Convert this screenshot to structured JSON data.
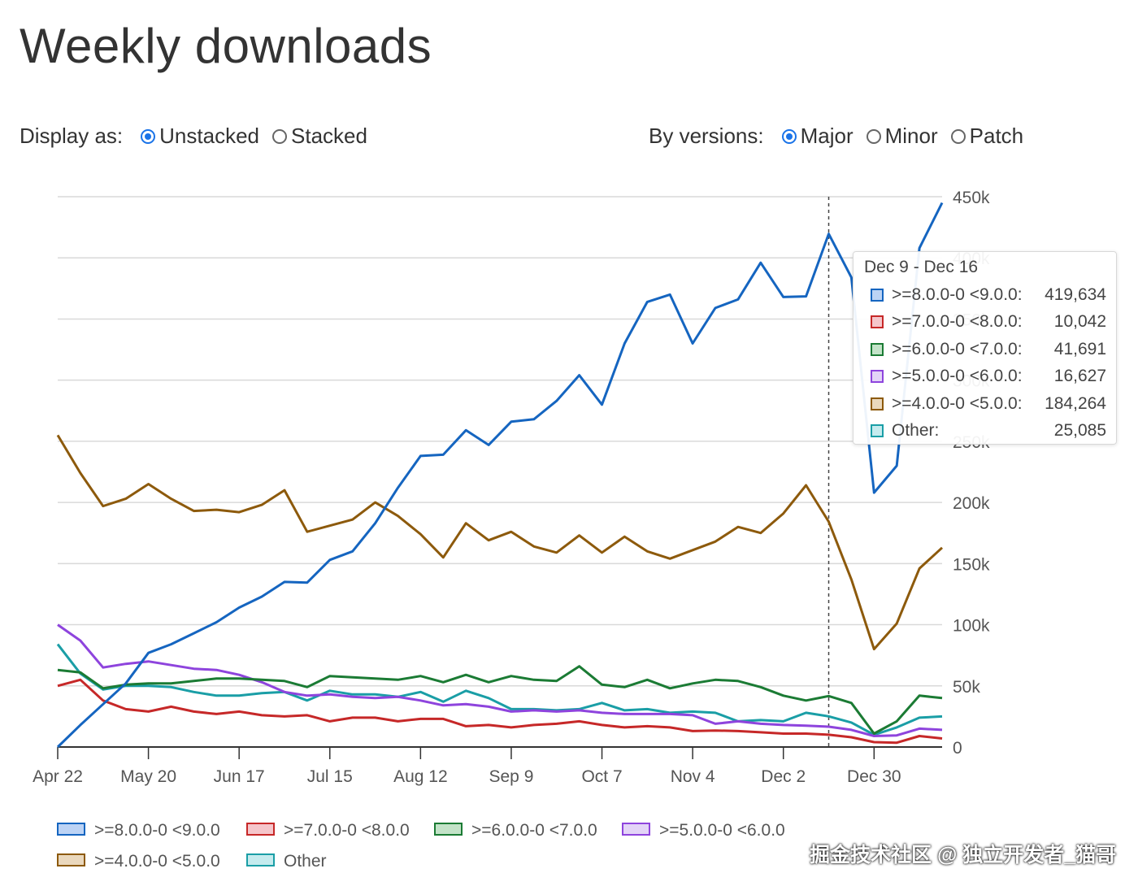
{
  "page": {
    "title": "Weekly downloads"
  },
  "controls": {
    "display_label": "Display as:",
    "display_options": [
      {
        "label": "Unstacked",
        "selected": true
      },
      {
        "label": "Stacked",
        "selected": false
      }
    ],
    "versions_label": "By versions:",
    "version_options": [
      {
        "label": "Major",
        "selected": true
      },
      {
        "label": "Minor",
        "selected": false
      },
      {
        "label": "Patch",
        "selected": false
      }
    ]
  },
  "tooltip": {
    "title": "Dec 9 - Dec 16",
    "rows": [
      {
        "label": ">=8.0.0-0 <9.0.0:",
        "value": "419,634",
        "color": "#1565c0",
        "fill": "#bcd3f5"
      },
      {
        "label": ">=7.0.0-0 <8.0.0:",
        "value": "10,042",
        "color": "#c62828",
        "fill": "#f5c6cb"
      },
      {
        "label": ">=6.0.0-0 <7.0.0:",
        "value": "41,691",
        "color": "#1b7b34",
        "fill": "#c3e3c8"
      },
      {
        "label": ">=5.0.0-0 <6.0.0:",
        "value": "16,627",
        "color": "#8e44dd",
        "fill": "#e3d4f7"
      },
      {
        "label": ">=4.0.0-0 <5.0.0:",
        "value": "184,264",
        "color": "#8d5a0c",
        "fill": "#ead8bd"
      },
      {
        "label": "Other:",
        "value": "25,085",
        "color": "#1a9ea6",
        "fill": "#c5ebee"
      }
    ]
  },
  "watermark": "掘金技术社区 @ 独立开发者_猫哥",
  "chart_data": {
    "type": "line",
    "x": [
      "Apr 22",
      "Apr 29",
      "May 6",
      "May 13",
      "May 20",
      "May 27",
      "Jun 3",
      "Jun 10",
      "Jun 17",
      "Jun 24",
      "Jul 1",
      "Jul 8",
      "Jul 15",
      "Jul 22",
      "Jul 29",
      "Aug 5",
      "Aug 12",
      "Aug 19",
      "Aug 26",
      "Sep 2",
      "Sep 9",
      "Sep 16",
      "Sep 23",
      "Sep 30",
      "Oct 7",
      "Oct 14",
      "Oct 21",
      "Oct 28",
      "Nov 4",
      "Nov 11",
      "Nov 18",
      "Nov 25",
      "Dec 2",
      "Dec 9",
      "Dec 16",
      "Dec 23",
      "Dec 30",
      "Jan 6",
      "Jan 13",
      "Jan 20"
    ],
    "x_ticks": [
      "Apr 22",
      "May 20",
      "Jun 17",
      "Jul 15",
      "Aug 12",
      "Sep 9",
      "Oct 7",
      "Nov 4",
      "Dec 2",
      "Dec 30"
    ],
    "y_ticks": [
      "0",
      "50k",
      "100k",
      "150k",
      "200k",
      "250k",
      "300k",
      "350k",
      "400k",
      "450k"
    ],
    "y_tick_values": [
      0,
      50000,
      100000,
      150000,
      200000,
      250000,
      300000,
      350000,
      400000,
      450000
    ],
    "ylim": [
      0,
      450000
    ],
    "grid": true,
    "legend_position": "bottom",
    "highlight_index": 34,
    "series": [
      {
        "name": ">=8.0.0-0 <9.0.0",
        "color": "#1565c0",
        "fill": "#bcd3f5",
        "values": [
          0,
          18000,
          35000,
          52000,
          77000,
          84000,
          93000,
          102000,
          114000,
          123000,
          135000,
          134500,
          153000,
          160000,
          183000,
          212000,
          238000,
          239000,
          259000,
          247000,
          266000,
          268000,
          283000,
          304000,
          280000,
          330000,
          364000,
          370000,
          330000,
          359000,
          366000,
          396000,
          368000,
          368500,
          419634,
          384000,
          208000,
          230000,
          408000,
          445000
        ]
      },
      {
        "name": ">=7.0.0-0 <8.0.0",
        "color": "#c62828",
        "fill": "#f5c6cb",
        "values": [
          50000,
          55000,
          38000,
          31000,
          29000,
          33000,
          29000,
          27000,
          29000,
          26000,
          25000,
          26000,
          21000,
          24000,
          24000,
          21000,
          23000,
          23000,
          17000,
          18000,
          16000,
          18000,
          19000,
          21000,
          18000,
          16000,
          17000,
          16000,
          13000,
          13500,
          13000,
          12000,
          11000,
          11000,
          10042,
          8000,
          4000,
          3500,
          9000,
          7000
        ]
      },
      {
        "name": ">=6.0.0-0 <7.0.0",
        "color": "#1b7b34",
        "fill": "#c3e3c8",
        "values": [
          63000,
          61000,
          48000,
          51000,
          52000,
          52000,
          54000,
          56000,
          56000,
          55000,
          54000,
          49000,
          58000,
          57000,
          56000,
          55000,
          58000,
          53000,
          59000,
          53000,
          58000,
          55000,
          54000,
          66000,
          51000,
          49000,
          55000,
          48000,
          52000,
          55000,
          54000,
          49000,
          42000,
          38000,
          41691,
          36000,
          11000,
          21000,
          42000,
          40000
        ]
      },
      {
        "name": ">=5.0.0-0 <6.0.0",
        "color": "#8e44dd",
        "fill": "#e3d4f7",
        "values": [
          100000,
          87000,
          65000,
          68000,
          70000,
          67000,
          64000,
          63000,
          59000,
          53000,
          45000,
          42000,
          43000,
          41000,
          40000,
          41000,
          38000,
          34000,
          35000,
          33000,
          29000,
          30000,
          29000,
          30000,
          28000,
          27000,
          27000,
          27000,
          26000,
          19000,
          21000,
          19000,
          18000,
          17500,
          16627,
          14000,
          9000,
          9500,
          15000,
          14000
        ]
      },
      {
        "name": ">=4.0.0-0 <5.0.0",
        "color": "#8d5a0c",
        "fill": "#ead8bd",
        "values": [
          255000,
          224000,
          197000,
          203000,
          215000,
          203000,
          193000,
          194000,
          192000,
          198000,
          210000,
          176000,
          181000,
          186000,
          200000,
          189000,
          174000,
          155000,
          183000,
          169000,
          176000,
          164000,
          159000,
          173000,
          159000,
          172000,
          160000,
          154000,
          161000,
          168000,
          180000,
          175000,
          191000,
          214000,
          184264,
          137000,
          80000,
          101000,
          146000,
          163000
        ]
      },
      {
        "name": "Other",
        "color": "#1a9ea6",
        "fill": "#c5ebee",
        "values": [
          84000,
          60000,
          47000,
          50000,
          50000,
          49000,
          45000,
          42000,
          42000,
          44000,
          45000,
          38000,
          46000,
          43000,
          43000,
          41000,
          45000,
          37000,
          46000,
          40000,
          31000,
          31000,
          30000,
          31000,
          36000,
          30000,
          31000,
          28000,
          29000,
          28000,
          21000,
          22000,
          21000,
          28000,
          25085,
          20000,
          10000,
          16000,
          24000,
          25000
        ]
      }
    ]
  }
}
